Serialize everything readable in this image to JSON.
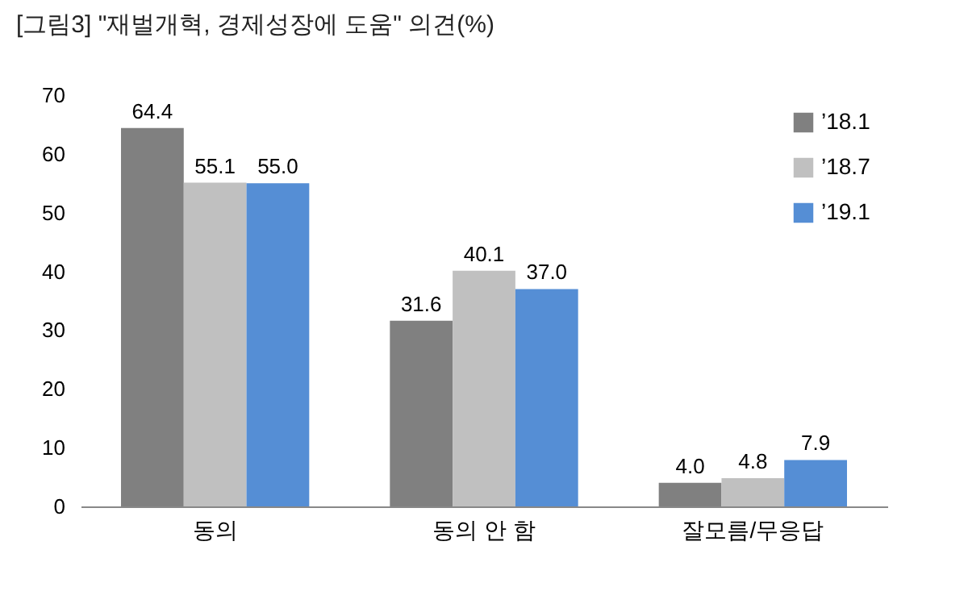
{
  "chart_data": {
    "type": "bar",
    "title": "[그림3] \"재벌개혁, 경제성장에 도움\" 의견(%)",
    "categories": [
      "동의",
      "동의 안 함",
      "잘모름/무응답"
    ],
    "series": [
      {
        "name": "’18.1",
        "color": "#808080",
        "values": [
          64.4,
          31.6,
          4.0
        ],
        "value_labels": [
          "64.4",
          "31.6",
          "4.0"
        ]
      },
      {
        "name": "’18.7",
        "color": "#c0c0c0",
        "values": [
          55.1,
          40.1,
          4.8
        ],
        "value_labels": [
          "55.1",
          "40.1",
          "4.8"
        ]
      },
      {
        "name": "’19.1",
        "color": "#558ed5",
        "values": [
          55.0,
          37.0,
          7.9
        ],
        "value_labels": [
          "55.0",
          "37.0",
          "7.9"
        ]
      }
    ],
    "ylim": [
      0,
      70
    ],
    "yticks": [
      0,
      10,
      20,
      30,
      40,
      50,
      60,
      70
    ],
    "grid": false,
    "legend": "top right"
  }
}
